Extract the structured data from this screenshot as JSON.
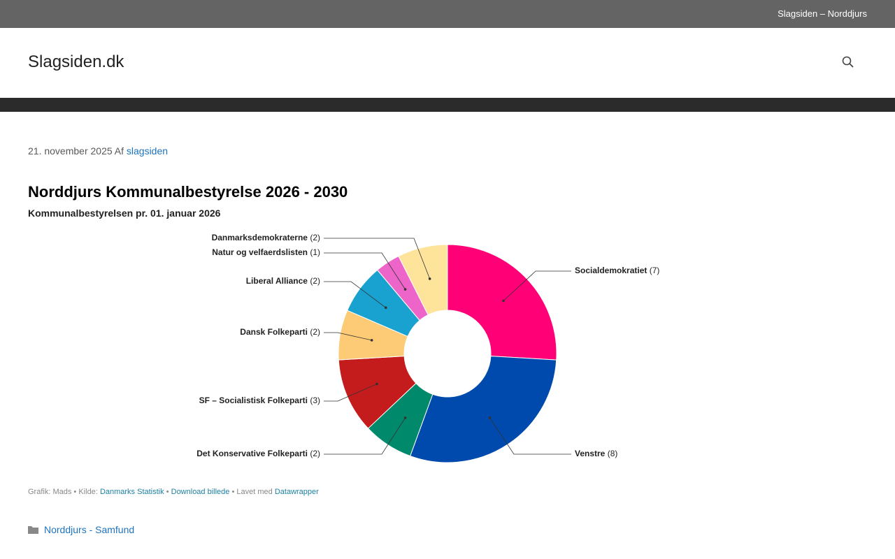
{
  "topbar": {
    "text": "Slagsiden – Norddjurs"
  },
  "header": {
    "site_title": "Slagsiden.dk"
  },
  "post": {
    "date": "21. november 2025",
    "by": "Af",
    "author": "slagsiden",
    "category": "Norddjurs - Samfund"
  },
  "chart_data": {
    "type": "pie",
    "title": "Norddjurs Kommunalbestyrelse 2026 - 2030",
    "subtitle": "Kommunalbestyrelsen pr. 01. januar 2026",
    "categories": [
      "Socialdemokratiet",
      "Venstre",
      "Det Konservative Folkeparti",
      "SF – Socialistisk Folkeparti",
      "Dansk Folkeparti",
      "Liberal Alliance",
      "Natur og velfaerdslisten",
      "Danmarksdemokraterne"
    ],
    "values": [
      7,
      8,
      2,
      3,
      2,
      2,
      1,
      2
    ],
    "value_labels": [
      "(7)",
      "(8)",
      "(2)",
      "(3)",
      "(2)",
      "(2)",
      "(1)",
      "(2)"
    ],
    "colors": [
      "#ff0077",
      "#004aad",
      "#00896b",
      "#c41c1c",
      "#fdca75",
      "#19a1cf",
      "#ee65c9",
      "#fee49b"
    ],
    "credits": {
      "graphic": "Grafik: Mads",
      "sep": "•",
      "source_label": "Kilde:",
      "source": "Danmarks Statistik",
      "download": "Download billede",
      "made_label": "Lavet med",
      "made": "Datawrapper"
    }
  }
}
